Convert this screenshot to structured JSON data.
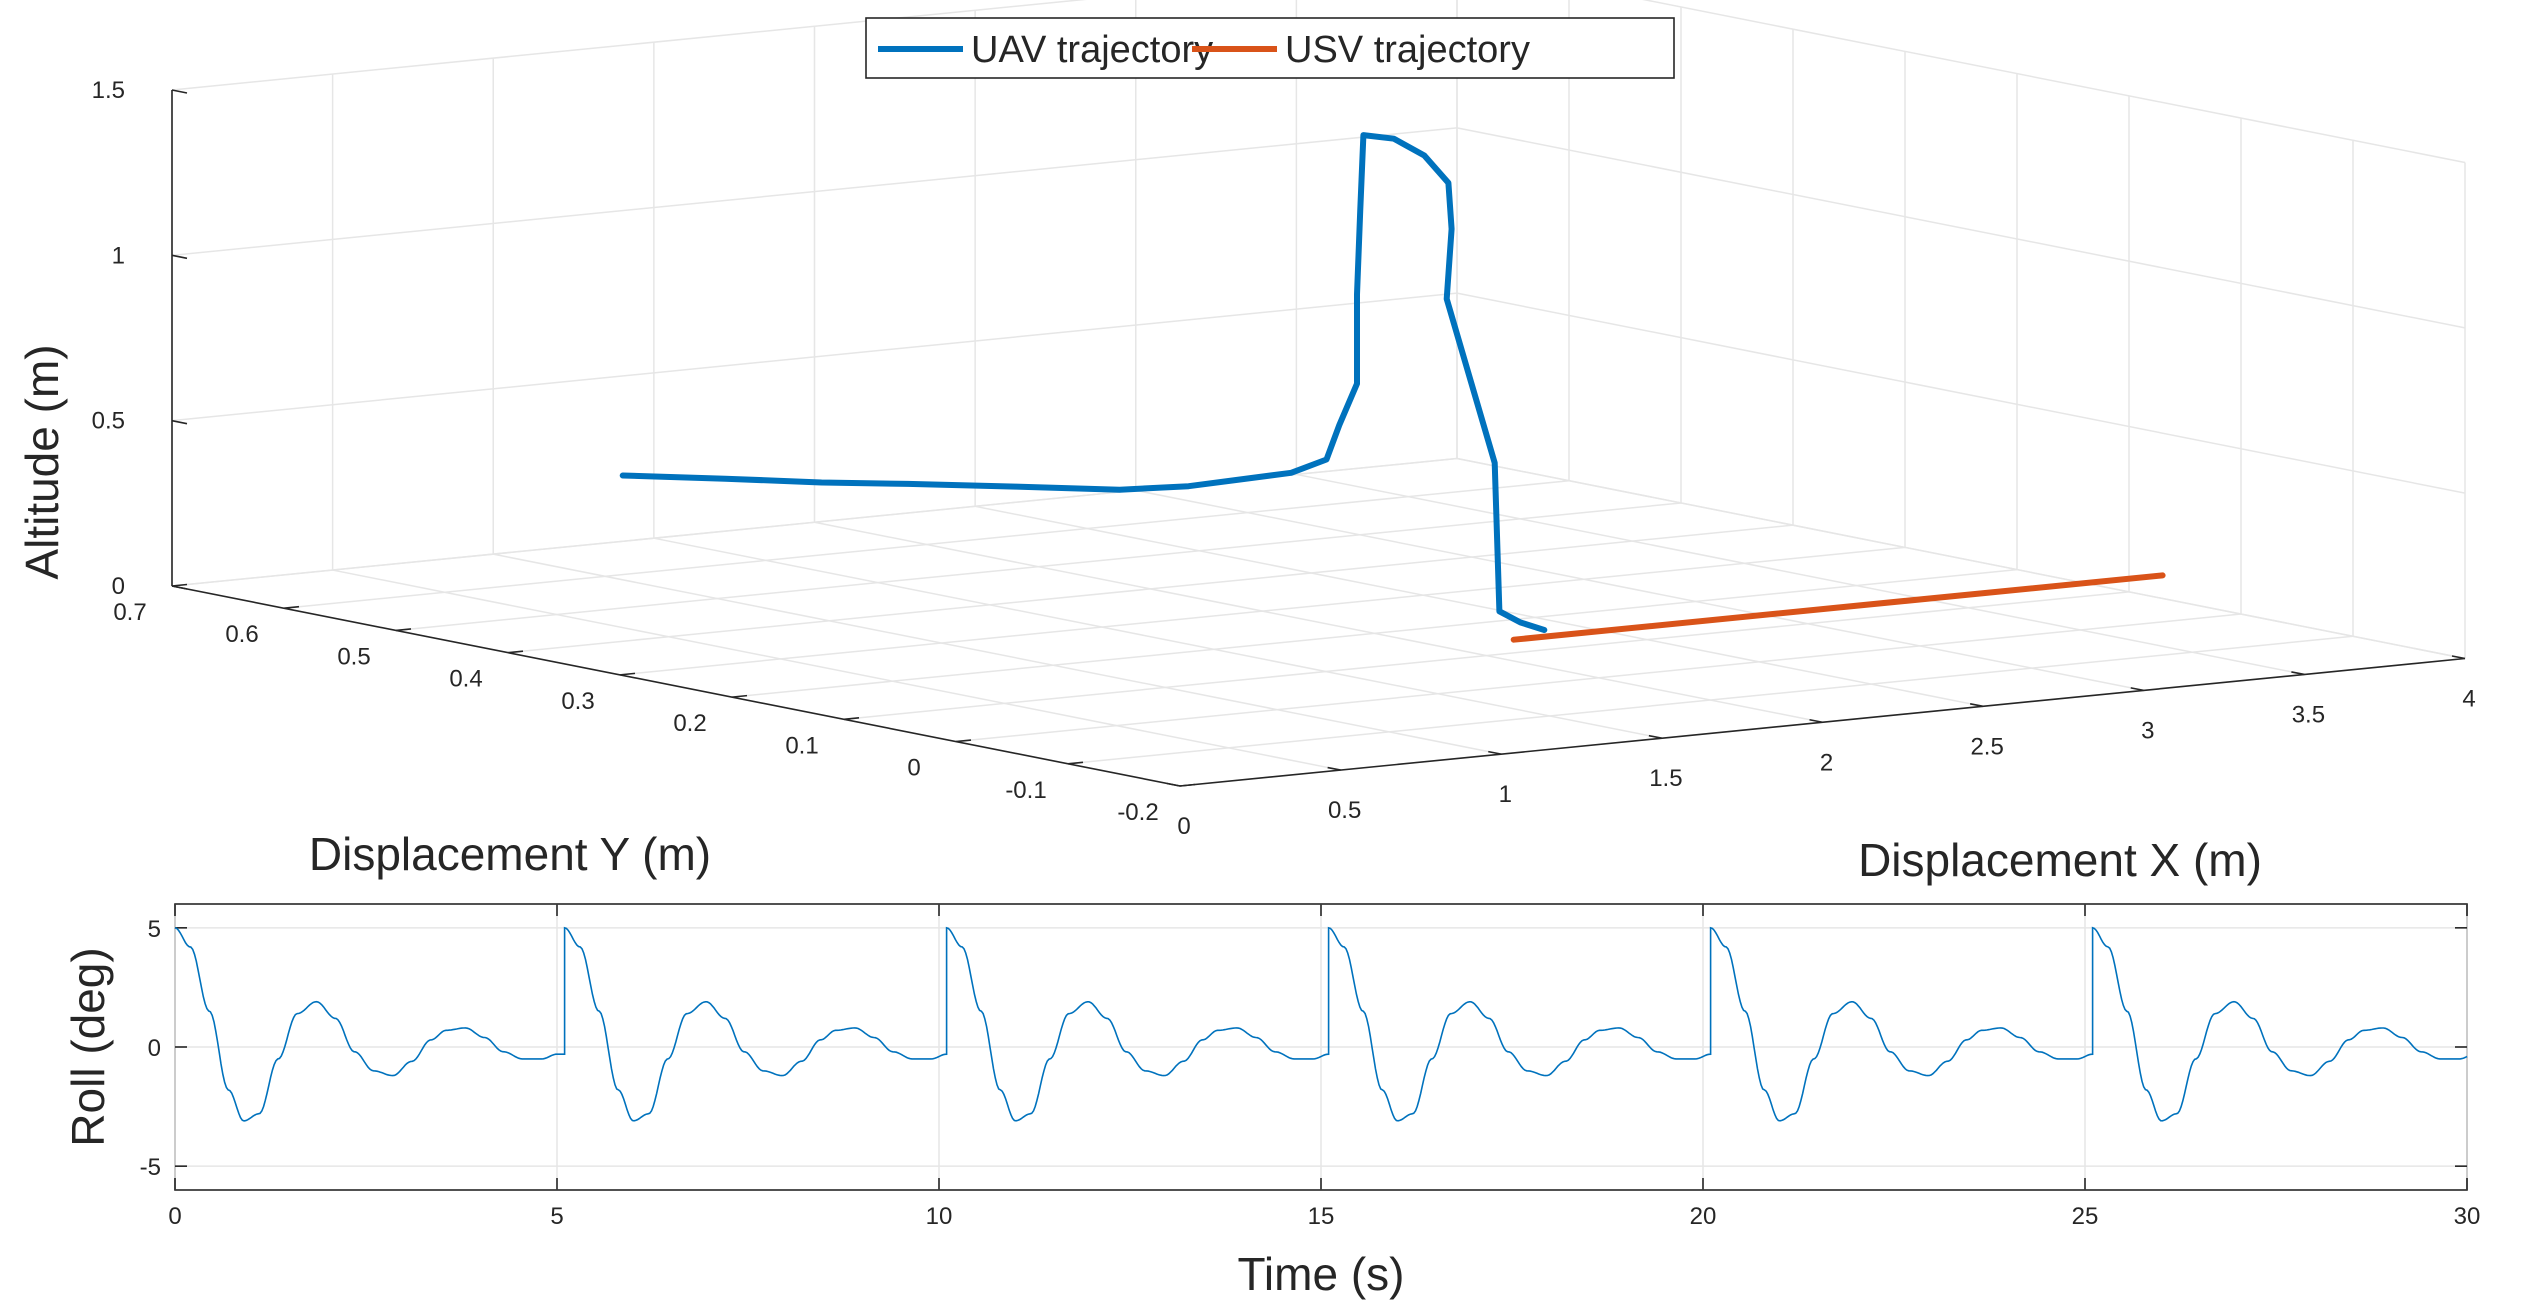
{
  "chart_data": [
    {
      "type": "line3d",
      "legend": {
        "placement": "top-center",
        "entries": [
          {
            "label": "UAV trajectory",
            "color": "#0072BD"
          },
          {
            "label": "USV trajectory",
            "color": "#D95319"
          }
        ]
      },
      "xlabel": "Displacement X (m)",
      "ylabel": "Displacement Y (m)",
      "zlabel": "Altitude (m)",
      "xlim": [
        0,
        4
      ],
      "ylim": [
        -0.2,
        0.7
      ],
      "zlim": [
        0,
        1.5
      ],
      "xticks": [
        "0",
        "0.5",
        "1",
        "1.5",
        "2",
        "2.5",
        "3",
        "3.5",
        "4"
      ],
      "yticks": [
        "-0.2",
        "-0.1",
        "0",
        "0.1",
        "0.2",
        "0.3",
        "0.4",
        "0.5",
        "0.6",
        "0.7"
      ],
      "zticks": [
        "0",
        "0.5",
        "1",
        "1.5"
      ],
      "grid": true,
      "series": [
        {
          "name": "UAV trajectory",
          "color": "#0072BD",
          "points": [
            [
              0.88,
              0.55,
              0.35
            ],
            [
              1.06,
              0.51,
              0.35
            ],
            [
              1.22,
              0.47,
              0.35
            ],
            [
              1.35,
              0.43,
              0.36
            ],
            [
              1.51,
              0.38,
              0.37
            ],
            [
              1.66,
              0.33,
              0.38
            ],
            [
              1.77,
              0.3,
              0.4
            ],
            [
              1.86,
              0.28,
              0.425
            ],
            [
              1.95,
              0.26,
              0.45
            ],
            [
              1.99,
              0.24,
              0.5
            ],
            [
              2.03,
              0.24,
              0.6
            ],
            [
              2.05,
              0.23,
              0.73
            ],
            [
              2.05,
              0.23,
              1.0
            ],
            [
              2.06,
              0.23,
              1.25
            ],
            [
              2.07,
              0.23,
              1.48
            ],
            [
              2.13,
              0.22,
              1.47
            ],
            [
              2.19,
              0.21,
              1.42
            ],
            [
              2.23,
              0.2,
              1.34
            ],
            [
              2.24,
              0.2,
              1.2
            ],
            [
              2.19,
              0.19,
              1.0
            ],
            [
              2.13,
              0.13,
              0.55
            ],
            [
              2.11,
              0.12,
              0.11
            ],
            [
              2.14,
              0.11,
              0.08
            ],
            [
              2.18,
              0.1,
              0.06
            ]
          ]
        },
        {
          "name": "USV trajectory",
          "color": "#D95319",
          "points": [
            [
              1.98,
              0.07,
              0.07
            ],
            [
              4.0,
              0.07,
              0.07
            ]
          ]
        }
      ]
    },
    {
      "type": "line",
      "xlabel": "Time (s)",
      "ylabel": "Roll (deg)",
      "xlim": [
        0,
        30
      ],
      "ylim": [
        -6,
        6
      ],
      "xticks": [
        "0",
        "5",
        "10",
        "15",
        "20",
        "25",
        "30"
      ],
      "yticks": [
        "-5",
        "0",
        "5"
      ],
      "grid": true,
      "series": [
        {
          "color": "#0072BD",
          "period": 5,
          "cycle_shape": {
            "t": [
              0,
              0.2,
              0.45,
              0.7,
              0.9,
              1.1,
              1.35,
              1.6,
              1.85,
              2.1,
              2.35,
              2.6,
              2.85,
              3.1,
              3.35,
              3.55,
              3.8,
              4.05,
              4.3,
              4.55,
              4.8,
              5.0
            ],
            "roll": [
              5.0,
              4.2,
              1.5,
              -1.8,
              -3.1,
              -2.8,
              -0.5,
              1.4,
              1.9,
              1.2,
              -0.2,
              -1.0,
              -1.2,
              -0.6,
              0.3,
              0.7,
              0.8,
              0.4,
              -0.2,
              -0.5,
              -0.5,
              -0.3
            ]
          },
          "cycle_starts": [
            0,
            5.1,
            10.1,
            15.1,
            20.1,
            25.1
          ]
        }
      ]
    }
  ]
}
